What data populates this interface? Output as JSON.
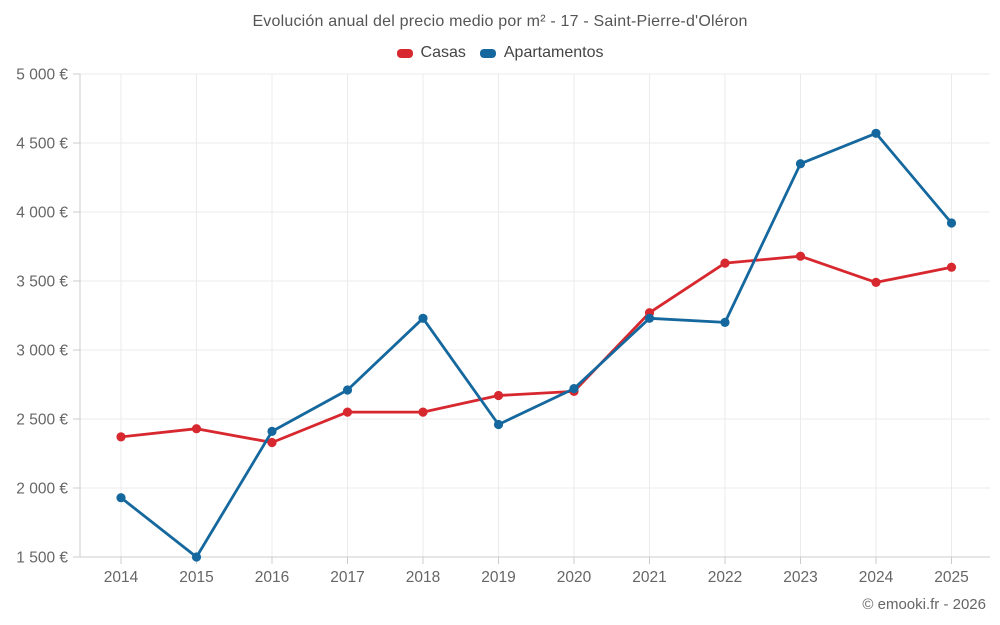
{
  "title": "Evolución anual del precio medio por m² - 17 - Saint-Pierre-d'Oléron",
  "footer": "© emooki.fr - 2026",
  "colors": {
    "casas": "#d7282f",
    "apartamentos": "#15689e",
    "grid": "#ebebeb",
    "axis": "#cccccc",
    "axis_label": "#666666",
    "title_text": "#555555"
  },
  "legend": {
    "items": [
      {
        "label": "Casas",
        "color": "#d7282f"
      },
      {
        "label": "Apartamentos",
        "color": "#15689e"
      }
    ]
  },
  "chart_data": {
    "type": "line",
    "title": "Evolución anual del precio medio por m² - 17 - Saint-Pierre-d'Oléron",
    "x": [
      2014,
      2015,
      2016,
      2017,
      2018,
      2019,
      2020,
      2021,
      2022,
      2023,
      2024,
      2025
    ],
    "x_tick_labels": [
      "2014",
      "2015",
      "2016",
      "2017",
      "2018",
      "2019",
      "2020",
      "2021",
      "2022",
      "2023",
      "2024",
      "2025"
    ],
    "series": [
      {
        "name": "Casas",
        "color": "#d7282f",
        "values": [
          2370,
          2430,
          2330,
          2550,
          2550,
          2670,
          2700,
          3270,
          3630,
          3680,
          3490,
          3600
        ]
      },
      {
        "name": "Apartamentos",
        "color": "#15689e",
        "values": [
          1930,
          1500,
          2410,
          2710,
          3230,
          2460,
          2720,
          3230,
          3200,
          4350,
          4570,
          3920
        ]
      }
    ],
    "xlabel": "",
    "ylabel": "",
    "ylim": [
      1500,
      5000
    ],
    "ytick_step": 500,
    "ytick_values": [
      1500,
      2000,
      2500,
      3000,
      3500,
      4000,
      4500,
      5000
    ],
    "ytick_labels": [
      "1 500 €",
      "2 000 €",
      "2 500 €",
      "3 000 €",
      "3 500 €",
      "4 000 €",
      "4 500 €",
      "5 000 €"
    ],
    "grid": true,
    "legend_position": "top",
    "marker": "circle"
  }
}
